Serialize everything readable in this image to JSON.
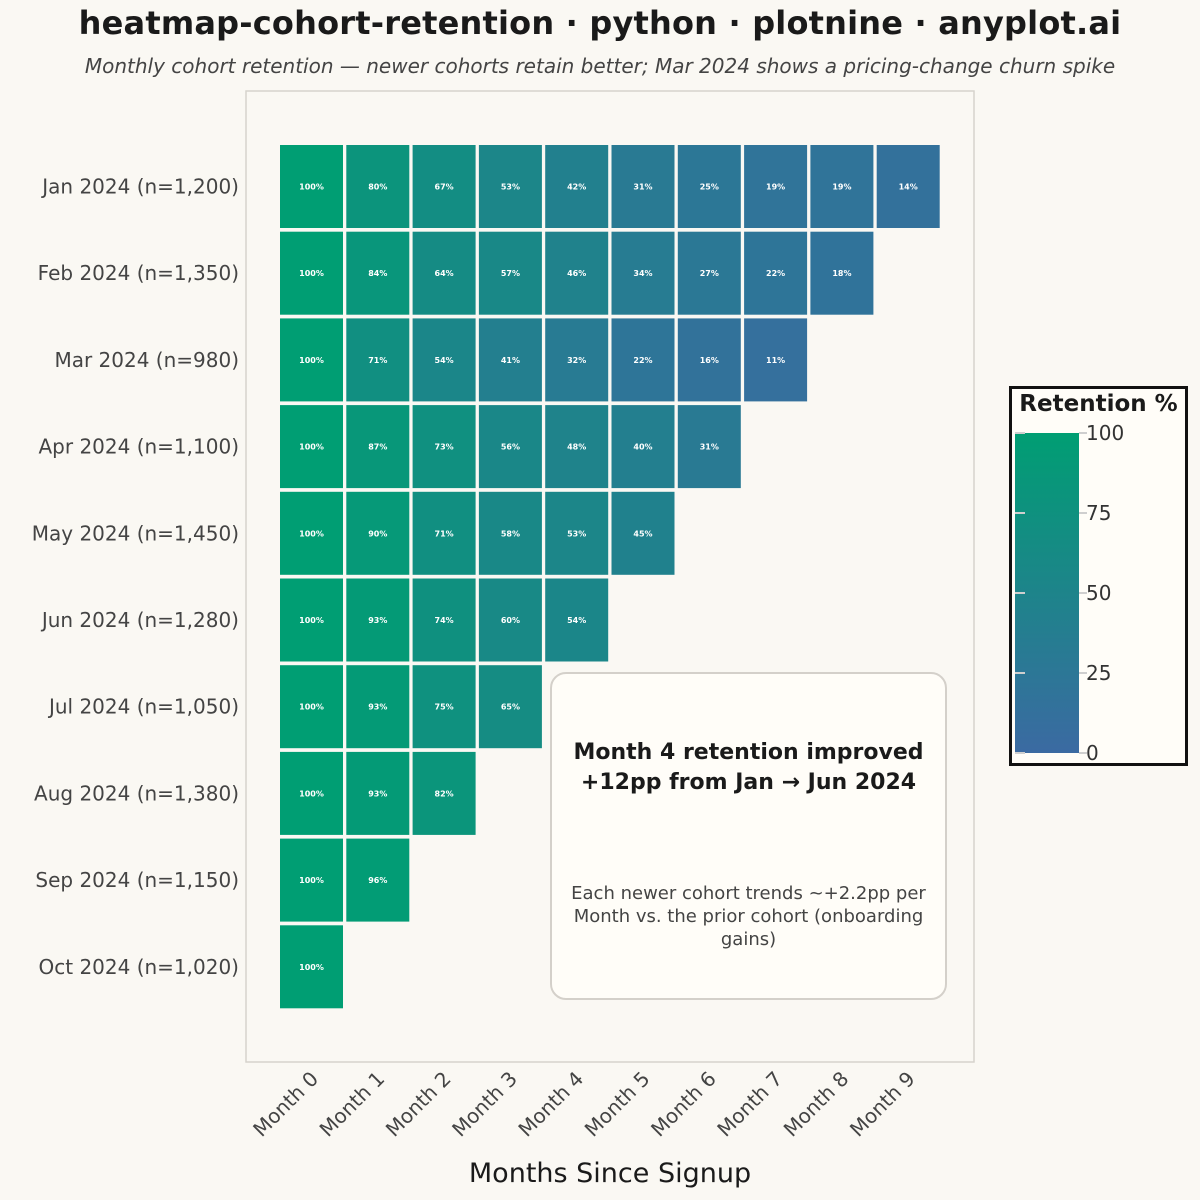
{
  "title": "heatmap-cohort-retention · python · plotnine · anyplot.ai",
  "subtitle": "Monthly cohort retention — newer cohorts retain better; Mar 2024 shows a pricing-change churn spike",
  "chart_data": {
    "type": "heatmap",
    "xlabel": "Months Since Signup",
    "ylabel": "",
    "x_categories": [
      "Month 0",
      "Month 1",
      "Month 2",
      "Month 3",
      "Month 4",
      "Month 5",
      "Month 6",
      "Month 7",
      "Month 8",
      "Month 9"
    ],
    "y_categories": [
      "Jan 2024 (n=1,200)",
      "Feb 2024 (n=1,350)",
      "Mar 2024 (n=980)",
      "Apr 2024 (n=1,100)",
      "May 2024 (n=1,450)",
      "Jun 2024 (n=1,280)",
      "Jul 2024 (n=1,050)",
      "Aug 2024 (n=1,380)",
      "Sep 2024 (n=1,150)",
      "Oct 2024 (n=1,020)"
    ],
    "values": [
      [
        100,
        80,
        67,
        53,
        42,
        31,
        25,
        19,
        19,
        14
      ],
      [
        100,
        84,
        64,
        57,
        46,
        34,
        27,
        22,
        18
      ],
      [
        100,
        71,
        54,
        41,
        32,
        22,
        16,
        11
      ],
      [
        100,
        87,
        73,
        56,
        48,
        40,
        31
      ],
      [
        100,
        90,
        71,
        58,
        53,
        45
      ],
      [
        100,
        93,
        74,
        60,
        54
      ],
      [
        100,
        93,
        75,
        65
      ],
      [
        100,
        93,
        82
      ],
      [
        100,
        96
      ],
      [
        100
      ]
    ],
    "cell_label_suffix": "%",
    "color_scale": {
      "title": "Retention %",
      "min": 0,
      "max": 100,
      "low_color": "#3b6aa2",
      "high_color": "#009e73",
      "ticks": [
        0,
        25,
        50,
        75,
        100
      ]
    },
    "annotation": {
      "title": "Month 4 retention improved\n+12pp from Jan → Jun 2024",
      "body": "Each newer cohort trends ~+2.2pp per\nMonth vs. the prior cohort (onboarding gains)"
    },
    "grid": false
  }
}
